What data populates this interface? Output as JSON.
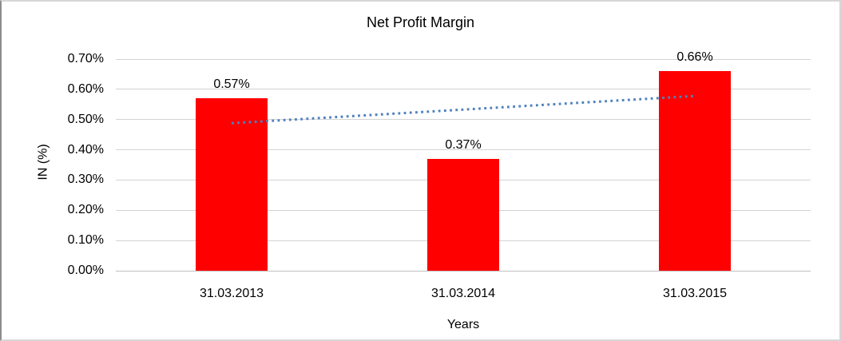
{
  "chart_data": {
    "type": "bar",
    "title": "Net Profit Margin",
    "xlabel": "Years",
    "ylabel": "IN (%)",
    "categories": [
      "31.03.2013",
      "31.03.2014",
      "31.03.2015"
    ],
    "values": [
      0.57,
      0.37,
      0.66
    ],
    "data_labels": [
      "0.57%",
      "0.37%",
      "0.66%"
    ],
    "y_ticks": [
      "0.00%",
      "0.10%",
      "0.20%",
      "0.30%",
      "0.40%",
      "0.50%",
      "0.60%",
      "0.70%"
    ],
    "ylim": [
      0.0,
      0.7
    ],
    "y_step": 0.1,
    "grid": "horizontal",
    "legend": "none",
    "bar_color": "#FF0000",
    "gridline_color": "#d3d3d3",
    "trendline": {
      "type": "linear",
      "style": "dotted",
      "color": "#4F81BD",
      "start_value": 0.488,
      "end_value": 0.578
    }
  }
}
